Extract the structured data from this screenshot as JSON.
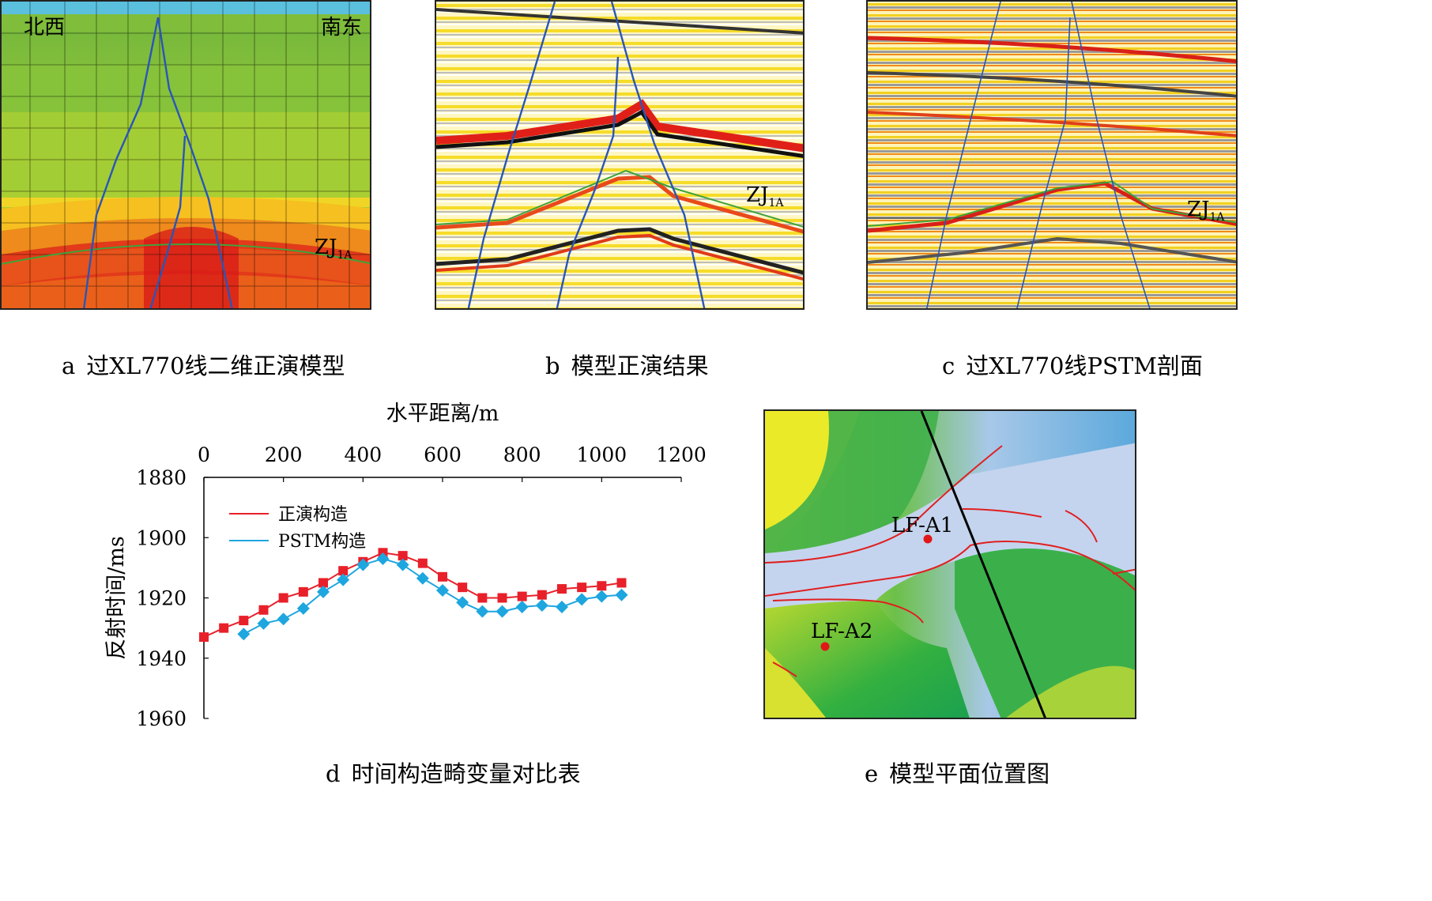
{
  "panels": {
    "a": {
      "letter": "a",
      "caption": "过XL770线二维正演模型",
      "dir_left": "北西",
      "dir_right": "南东",
      "horizon": "ZJ",
      "horizon_sub": "1A"
    },
    "b": {
      "letter": "b",
      "caption": "模型正演结果",
      "horizon": "ZJ",
      "horizon_sub": "1A"
    },
    "c": {
      "letter": "c",
      "caption": "过XL770线PSTM剖面",
      "horizon": "ZJ",
      "horizon_sub": "1A"
    },
    "d": {
      "letter": "d",
      "caption": "时间构造畸变量对比表"
    },
    "e": {
      "letter": "e",
      "caption": "模型平面位置图",
      "wells": [
        "LF-A1",
        "LF-A2"
      ]
    }
  },
  "chart_data": {
    "type": "line",
    "title": "",
    "xlabel": "水平距离/m",
    "ylabel": "反射时间/ms",
    "xlim": [
      0,
      1200
    ],
    "ylim": [
      1880,
      1960
    ],
    "y_inverted": true,
    "x_axis_position": "top",
    "x_ticks": [
      0,
      200,
      400,
      600,
      800,
      1000,
      1200
    ],
    "y_ticks": [
      1880,
      1900,
      1920,
      1940,
      1960
    ],
    "legend_position": "top-left",
    "series": [
      {
        "name": "正演构造",
        "color": "#e8202a",
        "marker": "square",
        "x": [
          0,
          50,
          100,
          150,
          200,
          250,
          300,
          350,
          400,
          450,
          500,
          550,
          600,
          650,
          700,
          750,
          800,
          850,
          900,
          950,
          1000,
          1050
        ],
        "y": [
          1933,
          1930,
          1927.5,
          1924,
          1920,
          1918,
          1915,
          1911,
          1908,
          1905,
          1906,
          1908.5,
          1913,
          1916.5,
          1920,
          1920,
          1919.5,
          1919,
          1917,
          1916.5,
          1916,
          1915
        ]
      },
      {
        "name": "PSTM构造",
        "color": "#1ea6df",
        "marker": "diamond",
        "x": [
          100,
          150,
          200,
          250,
          300,
          350,
          400,
          450,
          500,
          550,
          600,
          650,
          700,
          750,
          800,
          850,
          900,
          950,
          1000,
          1050
        ],
        "y": [
          1932,
          1928.5,
          1927,
          1923.5,
          1918,
          1914,
          1909,
          1907,
          1909,
          1913.5,
          1917.5,
          1921.5,
          1924.5,
          1924.5,
          1923,
          1922.5,
          1923,
          1920.5,
          1919.5,
          1919
        ]
      }
    ]
  }
}
